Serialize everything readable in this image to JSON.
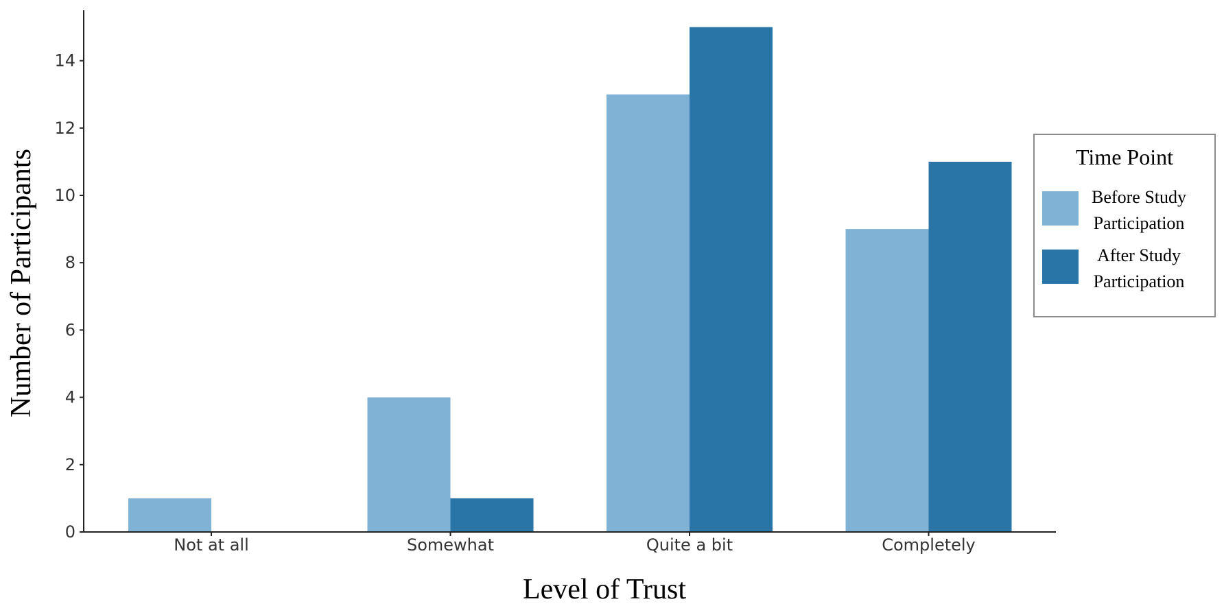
{
  "chart_data": {
    "type": "bar",
    "title": "",
    "xlabel": "Level of Trust",
    "ylabel": "Number of Participants",
    "categories": [
      "Not at all",
      "Somewhat",
      "Quite a bit",
      "Completely"
    ],
    "series": [
      {
        "name": "Before Study Participation",
        "name_lines": [
          "Before Study",
          "Participation"
        ],
        "color": "#7fb2d5",
        "values": [
          1,
          4,
          13,
          9
        ]
      },
      {
        "name": "After Study Participation",
        "name_lines": [
          "After Study",
          "Participation"
        ],
        "color": "#2a75a8",
        "values": [
          0,
          1,
          15,
          11
        ]
      }
    ],
    "ylim": [
      0,
      15.5
    ],
    "yticks": [
      0,
      2,
      4,
      6,
      8,
      10,
      12,
      14
    ],
    "grid": false,
    "legend": {
      "title": "Time Point",
      "placement": "right"
    }
  }
}
